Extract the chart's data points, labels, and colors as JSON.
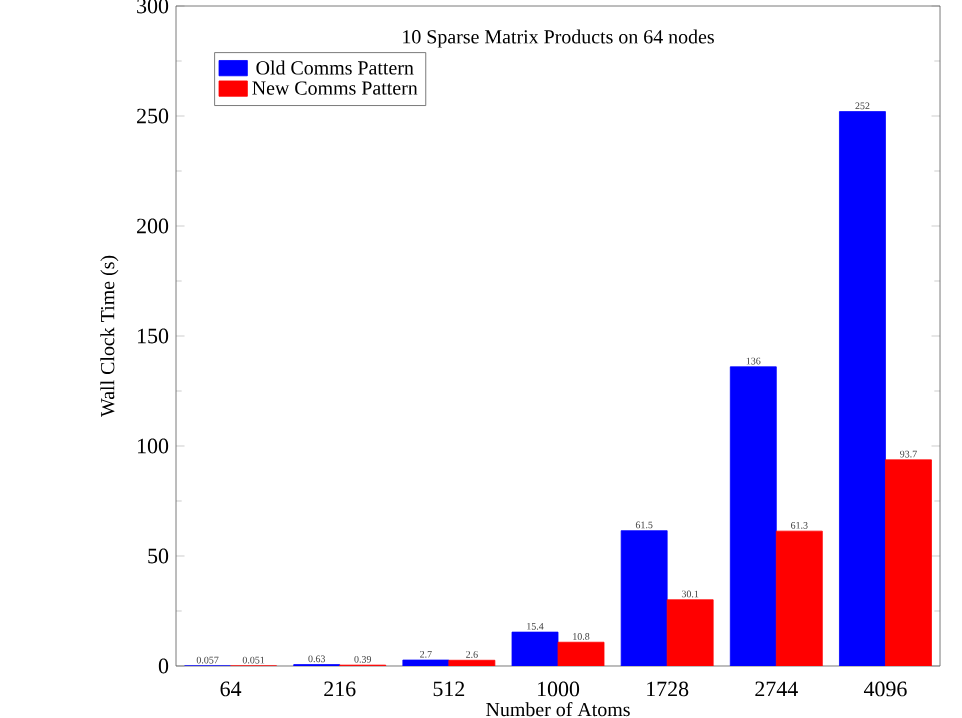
{
  "chart_data": {
    "type": "bar",
    "title": "10 Sparse Matrix Products on 64 nodes",
    "xlabel": "Number of Atoms",
    "ylabel": "Wall Clock Time (s)",
    "categories": [
      "64",
      "216",
      "512",
      "1000",
      "1728",
      "2744",
      "4096"
    ],
    "series": [
      {
        "name": "Old Comms Pattern",
        "color": "#0000ff",
        "values": [
          0.057,
          0.63,
          2.7,
          15.4,
          61.5,
          136,
          252
        ]
      },
      {
        "name": "New Comms Pattern",
        "color": "#ff0000",
        "values": [
          0.051,
          0.39,
          2.6,
          10.8,
          30.1,
          61.3,
          93.7
        ]
      }
    ],
    "ylim": [
      0,
      300
    ],
    "yticks": [
      0,
      50,
      100,
      150,
      200,
      250,
      300
    ],
    "data_labels": true,
    "legend": "top left"
  }
}
